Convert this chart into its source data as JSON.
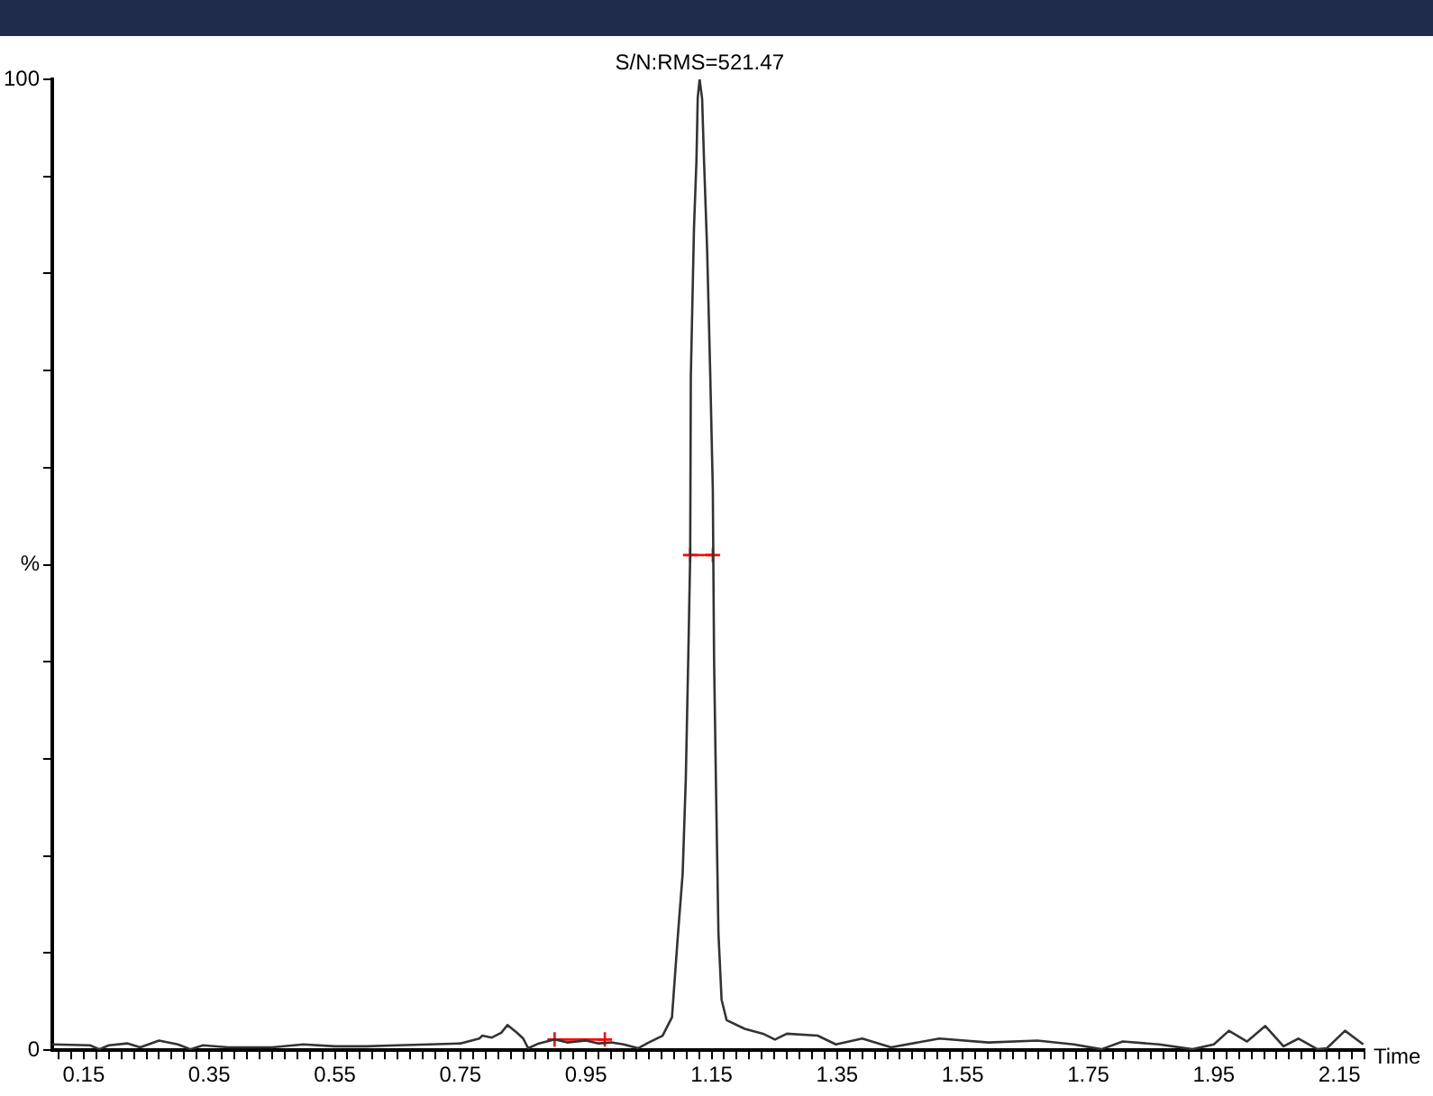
{
  "chart_data": {
    "type": "line",
    "xlabel": "Time",
    "xlim": [
      0.1,
      2.19
    ],
    "ylim": [
      0,
      100
    ],
    "xticks": [
      {
        "value": 0.11,
        "label": null
      },
      {
        "value": 0.13,
        "label": null
      },
      0.15,
      {
        "value": 0.17,
        "label": null
      },
      {
        "value": 0.19,
        "label": null
      },
      {
        "value": 0.21,
        "label": null
      },
      {
        "value": 0.23,
        "label": null
      },
      {
        "value": 0.25,
        "label": null
      },
      {
        "value": 0.27,
        "label": null
      },
      {
        "value": 0.29,
        "label": null
      },
      {
        "value": 0.31,
        "label": null
      },
      {
        "value": 0.33,
        "label": null
      },
      0.35,
      {
        "value": 0.37,
        "label": null
      },
      {
        "value": 0.39,
        "label": null
      },
      {
        "value": 0.41,
        "label": null
      },
      {
        "value": 0.43,
        "label": null
      },
      {
        "value": 0.45,
        "label": null
      },
      {
        "value": 0.47,
        "label": null
      },
      {
        "value": 0.49,
        "label": null
      },
      {
        "value": 0.51,
        "label": null
      },
      {
        "value": 0.53,
        "label": null
      },
      0.55,
      {
        "value": 0.57,
        "label": null
      },
      {
        "value": 0.59,
        "label": null
      },
      {
        "value": 0.61,
        "label": null
      },
      {
        "value": 0.63,
        "label": null
      },
      {
        "value": 0.65,
        "label": null
      },
      {
        "value": 0.67,
        "label": null
      },
      {
        "value": 0.69,
        "label": null
      },
      {
        "value": 0.71,
        "label": null
      },
      {
        "value": 0.73,
        "label": null
      },
      0.75,
      {
        "value": 0.77,
        "label": null
      },
      {
        "value": 0.79,
        "label": null
      },
      {
        "value": 0.81,
        "label": null
      },
      {
        "value": 0.83,
        "label": null
      },
      {
        "value": 0.85,
        "label": null
      },
      {
        "value": 0.87,
        "label": null
      },
      {
        "value": 0.89,
        "label": null
      },
      {
        "value": 0.91,
        "label": null
      },
      {
        "value": 0.93,
        "label": null
      },
      0.95,
      {
        "value": 0.97,
        "label": null
      },
      {
        "value": 0.99,
        "label": null
      },
      {
        "value": 1.01,
        "label": null
      },
      {
        "value": 1.03,
        "label": null
      },
      {
        "value": 1.05,
        "label": null
      },
      {
        "value": 1.07,
        "label": null
      },
      {
        "value": 1.09,
        "label": null
      },
      {
        "value": 1.11,
        "label": null
      },
      {
        "value": 1.13,
        "label": null
      },
      1.15,
      {
        "value": 1.17,
        "label": null
      },
      {
        "value": 1.19,
        "label": null
      },
      {
        "value": 1.21,
        "label": null
      },
      {
        "value": 1.23,
        "label": null
      },
      {
        "value": 1.25,
        "label": null
      },
      {
        "value": 1.27,
        "label": null
      },
      {
        "value": 1.29,
        "label": null
      },
      {
        "value": 1.31,
        "label": null
      },
      {
        "value": 1.33,
        "label": null
      },
      1.35,
      {
        "value": 1.37,
        "label": null
      },
      {
        "value": 1.39,
        "label": null
      },
      {
        "value": 1.41,
        "label": null
      },
      {
        "value": 1.43,
        "label": null
      },
      {
        "value": 1.45,
        "label": null
      },
      {
        "value": 1.47,
        "label": null
      },
      {
        "value": 1.49,
        "label": null
      },
      {
        "value": 1.51,
        "label": null
      },
      {
        "value": 1.53,
        "label": null
      },
      1.55,
      {
        "value": 1.57,
        "label": null
      },
      {
        "value": 1.59,
        "label": null
      },
      {
        "value": 1.61,
        "label": null
      },
      {
        "value": 1.63,
        "label": null
      },
      {
        "value": 1.65,
        "label": null
      },
      {
        "value": 1.67,
        "label": null
      },
      {
        "value": 1.69,
        "label": null
      },
      {
        "value": 1.71,
        "label": null
      },
      {
        "value": 1.73,
        "label": null
      },
      1.75,
      {
        "value": 1.77,
        "label": null
      },
      {
        "value": 1.79,
        "label": null
      },
      {
        "value": 1.81,
        "label": null
      },
      {
        "value": 1.83,
        "label": null
      },
      {
        "value": 1.85,
        "label": null
      },
      {
        "value": 1.87,
        "label": null
      },
      {
        "value": 1.89,
        "label": null
      },
      {
        "value": 1.91,
        "label": null
      },
      {
        "value": 1.93,
        "label": null
      },
      1.95,
      {
        "value": 1.97,
        "label": null
      },
      {
        "value": 1.99,
        "label": null
      },
      {
        "value": 2.01,
        "label": null
      },
      {
        "value": 2.03,
        "label": null
      },
      {
        "value": 2.05,
        "label": null
      },
      {
        "value": 2.07,
        "label": null
      },
      {
        "value": 2.09,
        "label": null
      },
      {
        "value": 2.11,
        "label": null
      },
      {
        "value": 2.13,
        "label": null
      },
      2.15,
      {
        "value": 2.17,
        "label": null
      },
      {
        "value": 2.19,
        "label": null
      }
    ],
    "yticks": [
      0,
      {
        "value": 10,
        "label": null
      },
      {
        "value": 20,
        "label": null
      },
      {
        "value": 30,
        "label": null
      },
      {
        "value": 40,
        "label": null
      },
      {
        "value": 50,
        "label": "%"
      },
      {
        "value": 60,
        "label": null
      },
      {
        "value": 70,
        "label": null
      },
      {
        "value": 80,
        "label": null
      },
      {
        "value": 90,
        "label": null
      },
      100
    ],
    "grid": false,
    "legend": false,
    "marker": "none",
    "line_style": "solid",
    "annotations": [
      {
        "text": "S/N:RMS=521.47",
        "x": 1.131,
        "y": 100
      }
    ],
    "series": [
      {
        "color": "#333333",
        "x": [
          0.1,
          0.16,
          0.175,
          0.19,
          0.22,
          0.24,
          0.27,
          0.3,
          0.32,
          0.34,
          0.38,
          0.45,
          0.5,
          0.55,
          0.6,
          0.65,
          0.7,
          0.75,
          0.78,
          0.785,
          0.8,
          0.815,
          0.825,
          0.84,
          0.85,
          0.858,
          0.875,
          0.9,
          0.92,
          0.95,
          0.97,
          0.99,
          1.01,
          1.033,
          1.05,
          1.072,
          1.087,
          1.096,
          1.104,
          1.109,
          1.113,
          1.116,
          1.117,
          1.122,
          1.126,
          1.128,
          1.131,
          1.135,
          1.138,
          1.143,
          1.148,
          1.152,
          1.154,
          1.157,
          1.161,
          1.166,
          1.174,
          1.203,
          1.232,
          1.251,
          1.27,
          1.319,
          1.348,
          1.39,
          1.436,
          1.513,
          1.591,
          1.669,
          1.727,
          1.771,
          1.805,
          1.863,
          1.916,
          1.95,
          1.974,
          2.003,
          2.032,
          2.061,
          2.085,
          2.115,
          2.13,
          2.159,
          2.188
        ],
        "values": [
          0.6,
          0.5,
          0.1,
          0.5,
          0.7,
          0.3,
          1.0,
          0.6,
          0.1,
          0.5,
          0.3,
          0.3,
          0.6,
          0.4,
          0.4,
          0.5,
          0.6,
          0.7,
          1.2,
          1.5,
          1.3,
          1.8,
          2.6,
          1.8,
          1.2,
          0.2,
          0.7,
          1.1,
          0.8,
          1.0,
          0.7,
          0.8,
          0.6,
          0.2,
          0.8,
          1.5,
          3.4,
          11.5,
          18.2,
          28,
          40.7,
          51,
          69.4,
          84.6,
          91.7,
          98.1,
          100,
          98,
          91.7,
          82.4,
          69.4,
          57.8,
          40.4,
          27.5,
          12,
          5.2,
          3.1,
          2.2,
          1.7,
          1.1,
          1.7,
          1.5,
          0.6,
          1.2,
          0.3,
          1.2,
          0.8,
          1.0,
          0.6,
          0.1,
          0.9,
          0.6,
          0.1,
          0.6,
          2.0,
          0.9,
          2.5,
          0.4,
          1.2,
          0.1,
          0.2,
          2.0,
          0.6
        ]
      },
      {
        "color": "#ff0000",
        "marker": "cross",
        "x": [
          1.116,
          1.152
        ],
        "values": [
          51,
          51
        ]
      },
      {
        "color": "#ff0000",
        "marker": "cross",
        "x": [
          0.9,
          0.98
        ],
        "values": [
          1.1,
          1.1
        ]
      }
    ]
  }
}
